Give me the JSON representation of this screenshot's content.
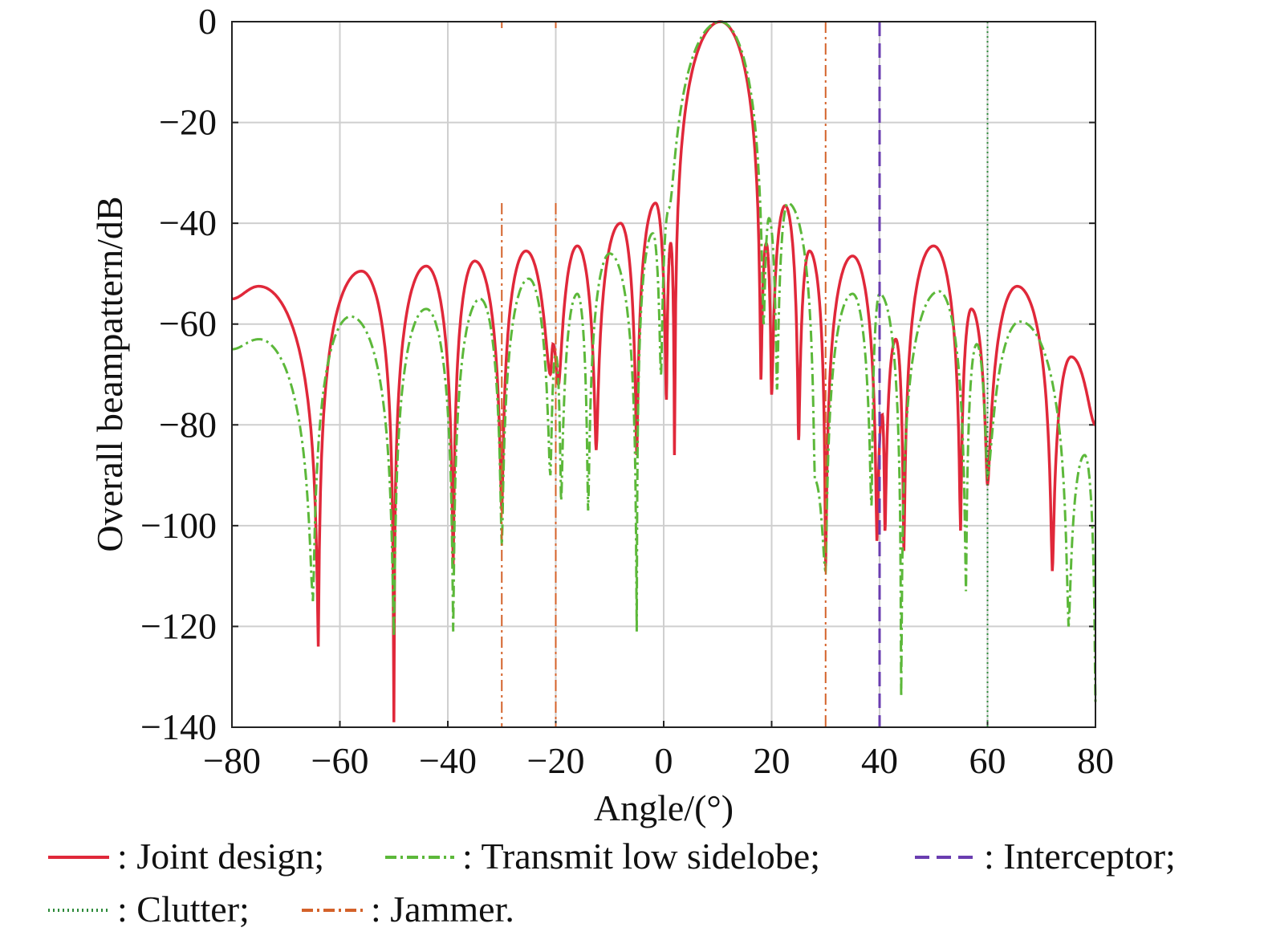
{
  "chart_data": {
    "type": "line",
    "title": "",
    "xlabel": "Angle/(°)",
    "ylabel": "Overall beampattern/dB",
    "xlim": [
      -80,
      80
    ],
    "ylim": [
      -140,
      0
    ],
    "xticks": [
      -80,
      -60,
      -40,
      -20,
      0,
      20,
      40,
      60,
      80
    ],
    "xtick_labels": [
      "−80",
      "−60",
      "−40",
      "−20",
      "0",
      "20",
      "40",
      "60",
      "80"
    ],
    "yticks": [
      0,
      -20,
      -40,
      -60,
      -80,
      -100,
      -120,
      -140
    ],
    "ytick_labels": [
      "0",
      "−20",
      "−40",
      "−60",
      "−80",
      "−100",
      "−120",
      "−140"
    ],
    "grid": true,
    "legend_placement": "bottom",
    "series": [
      {
        "name": "Joint design",
        "legend": ": Joint design;",
        "color": "#e0283a",
        "style": "solid",
        "points": [
          [
            -80,
            -55
          ],
          [
            -75,
            -52.5
          ],
          [
            -64,
            -124
          ],
          [
            -56,
            -49.5
          ],
          [
            -50,
            -139
          ],
          [
            -44,
            -48.5
          ],
          [
            -39,
            -108
          ],
          [
            -35,
            -47.5
          ],
          [
            -30,
            -97
          ],
          [
            -25.5,
            -45.5
          ],
          [
            -21,
            -70
          ],
          [
            -20.5,
            -64
          ],
          [
            -19.5,
            -72
          ],
          [
            -16,
            -44.5
          ],
          [
            -12.5,
            -85
          ],
          [
            -8,
            -40
          ],
          [
            -5,
            -86
          ],
          [
            -1.5,
            -36
          ],
          [
            0.5,
            -75
          ],
          [
            1.3,
            -44
          ],
          [
            2,
            -86
          ],
          [
            10.5,
            0
          ],
          [
            18,
            -71
          ],
          [
            19,
            -44
          ],
          [
            20,
            -74
          ],
          [
            22.5,
            -36.5
          ],
          [
            25,
            -83
          ],
          [
            27,
            -45.5
          ],
          [
            30,
            -108
          ],
          [
            35,
            -46.5
          ],
          [
            39.5,
            -103
          ],
          [
            40.5,
            -78
          ],
          [
            41,
            -101
          ],
          [
            43,
            -63
          ],
          [
            44.5,
            -105
          ],
          [
            50,
            -44.5
          ],
          [
            55,
            -101
          ],
          [
            57,
            -57
          ],
          [
            60,
            -92
          ],
          [
            65.5,
            -52.5
          ],
          [
            72,
            -109
          ],
          [
            75.5,
            -66.5
          ],
          [
            80,
            -80
          ]
        ]
      },
      {
        "name": "Transmit low sidelobe",
        "legend": ": Transmit low sidelobe;",
        "color": "#5cb83a",
        "style": "dashdot",
        "points": [
          [
            -80,
            -65
          ],
          [
            -75,
            -63
          ],
          [
            -65,
            -115
          ],
          [
            -58,
            -58.5
          ],
          [
            -50,
            -122
          ],
          [
            -44,
            -57
          ],
          [
            -39,
            -121
          ],
          [
            -34,
            -55
          ],
          [
            -30,
            -104
          ],
          [
            -25,
            -51
          ],
          [
            -21,
            -90
          ],
          [
            -20,
            -66
          ],
          [
            -19,
            -95
          ],
          [
            -16,
            -54
          ],
          [
            -14,
            -97
          ],
          [
            -10,
            -46
          ],
          [
            -5,
            -121
          ],
          [
            -2,
            -42
          ],
          [
            -0.5,
            -70
          ],
          [
            1,
            -37
          ],
          [
            10.5,
            0
          ],
          [
            18.5,
            -60
          ],
          [
            19.5,
            -39
          ],
          [
            21,
            -73
          ],
          [
            23,
            -36
          ],
          [
            28,
            -91
          ],
          [
            30,
            -109
          ],
          [
            35,
            -54
          ],
          [
            38.5,
            -96
          ],
          [
            40,
            -54
          ],
          [
            44,
            -134
          ],
          [
            51,
            -53.5
          ],
          [
            56,
            -113
          ],
          [
            58,
            -64
          ],
          [
            60,
            -90
          ],
          [
            66,
            -59.5
          ],
          [
            75,
            -120
          ],
          [
            78,
            -86
          ],
          [
            80,
            -135
          ]
        ]
      }
    ],
    "markers": [
      {
        "name": "Interceptor",
        "legend": ": Interceptor;",
        "color": "#6a3db0",
        "style": "dashed",
        "angles": [
          40
        ]
      },
      {
        "name": "Clutter",
        "legend": ": Clutter;",
        "color": "#2e8b3a",
        "style": "dotted",
        "angles": [
          60
        ]
      },
      {
        "name": "Jammer",
        "legend": ": Jammer.",
        "color": "#d4622a",
        "style": "dashdot",
        "angles": [
          -30,
          -20,
          30
        ]
      }
    ]
  }
}
